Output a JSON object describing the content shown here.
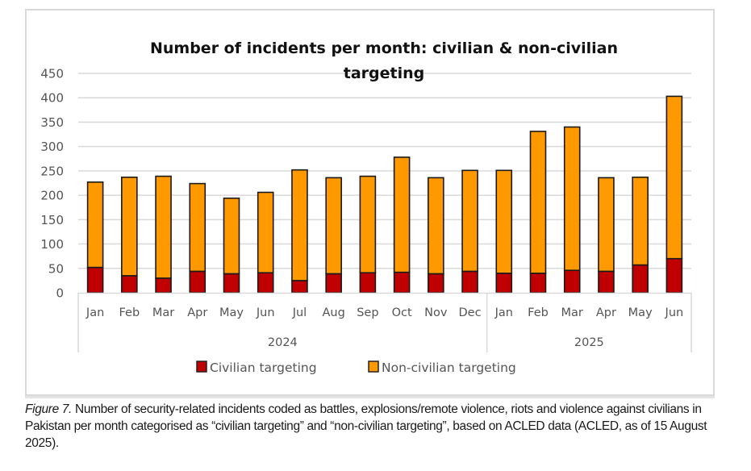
{
  "chart_data": {
    "type": "bar",
    "stacked": true,
    "title": "Number of incidents per month: civilian & non-civilian targeting",
    "title_lines": [
      "Number of incidents per month: civilian & non-civilian",
      "targeting"
    ],
    "xlabel": "",
    "ylabel": "",
    "ylim": [
      0,
      450
    ],
    "yticks": [
      0,
      50,
      100,
      150,
      200,
      250,
      300,
      350,
      400,
      450
    ],
    "grid": true,
    "legend_position": "bottom",
    "categories": [
      "Jan",
      "Feb",
      "Mar",
      "Apr",
      "May",
      "Jun",
      "Jul",
      "Aug",
      "Sep",
      "Oct",
      "Nov",
      "Dec",
      "Jan",
      "Feb",
      "Mar",
      "Apr",
      "May",
      "Jun"
    ],
    "groups": [
      {
        "label": "2024",
        "count": 12
      },
      {
        "label": "2025",
        "count": 6
      }
    ],
    "series": [
      {
        "name": "Civilian targeting",
        "color": "#c00000",
        "values": [
          52,
          35,
          30,
          44,
          39,
          41,
          25,
          39,
          41,
          42,
          39,
          44,
          40,
          40,
          46,
          44,
          57,
          70
        ]
      },
      {
        "name": "Non-civilian targeting",
        "color": "#ff9900",
        "values": [
          175,
          202,
          209,
          180,
          155,
          165,
          227,
          197,
          198,
          236,
          197,
          207,
          211,
          291,
          294,
          192,
          180,
          333
        ]
      }
    ],
    "totals": [
      227,
      237,
      239,
      224,
      194,
      206,
      252,
      236,
      239,
      278,
      236,
      251,
      251,
      331,
      340,
      236,
      237,
      403
    ]
  },
  "caption": {
    "figure_label": "Figure 7.",
    "text": " Number of security-related incidents coded as battles, explosions/remote violence, riots and violence against civilians in Pakistan per month categorised as “civilian targeting” and “non-civilian targeting”, based on ACLED data (ACLED, as of 15 August 2025)."
  }
}
